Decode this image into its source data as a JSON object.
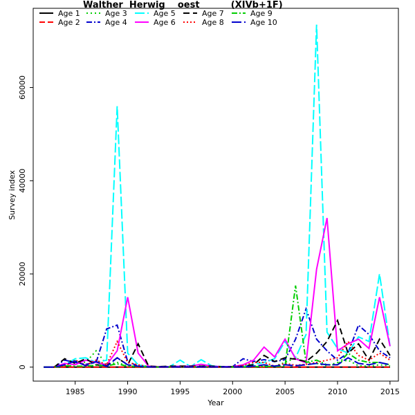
{
  "chart_data": {
    "type": "line",
    "title": "Walther  Herwig    oest          (XIVb+1F)",
    "xlabel": "Year",
    "ylabel": "Survey index",
    "xlim": [
      1981,
      2015.8
    ],
    "ylim": [
      -3000,
      77000
    ],
    "xticks": [
      1985,
      1990,
      1995,
      2000,
      2005,
      2010,
      2015
    ],
    "yticks": [
      0,
      20000,
      40000,
      60000
    ],
    "legend_placement": "top-left",
    "x": [
      1982,
      1983,
      1984,
      1985,
      1986,
      1987,
      1988,
      1989,
      1990,
      1991,
      1992,
      1993,
      1994,
      1995,
      1996,
      1997,
      1998,
      1999,
      2000,
      2001,
      2002,
      2003,
      2004,
      2005,
      2006,
      2007,
      2008,
      2009,
      2010,
      2011,
      2012,
      2013,
      2014,
      2015
    ],
    "series": [
      {
        "name": "Age 1",
        "color": "#000000",
        "dash": "",
        "values": [
          0,
          0,
          0,
          0,
          0,
          0,
          0,
          0,
          0,
          0,
          0,
          0,
          0,
          0,
          0,
          0,
          0,
          0,
          0,
          0,
          0,
          0,
          0,
          0,
          0,
          0,
          0,
          0,
          0,
          0,
          0,
          0,
          0,
          0
        ]
      },
      {
        "name": "Age 2",
        "color": "#ff0000",
        "dash": "8,4",
        "values": [
          0,
          0,
          0,
          0,
          0,
          0,
          0,
          0,
          0,
          0,
          0,
          0,
          0,
          0,
          0,
          0,
          0,
          0,
          0,
          0,
          0,
          0,
          0,
          0,
          0,
          0,
          0,
          0,
          0,
          0,
          0,
          0,
          0,
          0
        ]
      },
      {
        "name": "Age 3",
        "color": "#00cd00",
        "dash": "2,4",
        "values": [
          0,
          0,
          300,
          1400,
          1000,
          3500,
          500,
          1000,
          200,
          100,
          50,
          50,
          50,
          50,
          50,
          50,
          50,
          50,
          50,
          50,
          100,
          100,
          200,
          1000,
          2000,
          1000,
          800,
          300,
          1000,
          1500,
          300,
          200,
          500,
          300
        ]
      },
      {
        "name": "Age 4",
        "color": "#0000cd",
        "dash": "8,3,2,3",
        "values": [
          0,
          0,
          1500,
          1000,
          600,
          1000,
          8200,
          9000,
          1200,
          200,
          50,
          50,
          50,
          100,
          100,
          100,
          100,
          100,
          100,
          1800,
          1200,
          1600,
          1200,
          1600,
          6000,
          12500,
          6000,
          3500,
          1500,
          3000,
          9000,
          7000,
          3500,
          2000
        ]
      },
      {
        "name": "Age 5",
        "color": "#00ffff",
        "dash": "14,4",
        "values": [
          0,
          0,
          500,
          1800,
          2000,
          1000,
          1500,
          56000,
          3000,
          500,
          100,
          100,
          100,
          1500,
          100,
          1600,
          300,
          100,
          100,
          200,
          600,
          1000,
          1800,
          5500,
          2000,
          7000,
          73500,
          7500,
          4000,
          3000,
          6500,
          5500,
          20000,
          4500
        ]
      },
      {
        "name": "Age 6",
        "color": "#ff00ff",
        "dash": "",
        "values": [
          0,
          0,
          800,
          500,
          1500,
          1000,
          500,
          3500,
          15000,
          3000,
          200,
          100,
          100,
          200,
          200,
          600,
          200,
          100,
          100,
          500,
          1500,
          4300,
          2200,
          6000,
          1800,
          900,
          21000,
          32000,
          3500,
          5000,
          6000,
          4000,
          15000,
          4500
        ]
      },
      {
        "name": "Age 7",
        "color": "#000000",
        "dash": "9,5",
        "values": [
          0,
          0,
          1800,
          800,
          1800,
          500,
          300,
          2000,
          500,
          5000,
          200,
          100,
          200,
          200,
          200,
          200,
          200,
          100,
          100,
          200,
          500,
          2500,
          1200,
          2000,
          1700,
          1200,
          3000,
          5500,
          10000,
          3000,
          5000,
          1500,
          6000,
          2500
        ]
      },
      {
        "name": "Age 8",
        "color": "#ff0000",
        "dash": "2,3",
        "values": [
          0,
          0,
          200,
          1500,
          400,
          1500,
          500,
          5500,
          1000,
          500,
          100,
          100,
          50,
          100,
          100,
          100,
          100,
          50,
          100,
          300,
          1000,
          1000,
          200,
          800,
          400,
          600,
          1000,
          1500,
          2000,
          5500,
          2500,
          1500,
          3000,
          1500
        ]
      },
      {
        "name": "Age 9",
        "color": "#00cd00",
        "dash": "8,3,2,3",
        "values": [
          0,
          0,
          300,
          200,
          200,
          400,
          300,
          700,
          200,
          200,
          50,
          50,
          50,
          50,
          50,
          50,
          50,
          50,
          50,
          50,
          100,
          200,
          100,
          200,
          17500,
          1000,
          1500,
          500,
          500,
          3000,
          1500,
          1000,
          1000,
          500
        ]
      },
      {
        "name": "Age 10",
        "color": "#0000cd",
        "dash": "14,4",
        "values": [
          0,
          0,
          500,
          1300,
          300,
          1200,
          100,
          2000,
          500,
          200,
          50,
          50,
          50,
          50,
          50,
          50,
          50,
          50,
          50,
          50,
          200,
          500,
          200,
          500,
          300,
          500,
          800,
          500,
          500,
          2000,
          800,
          500,
          1000,
          500
        ]
      }
    ]
  }
}
